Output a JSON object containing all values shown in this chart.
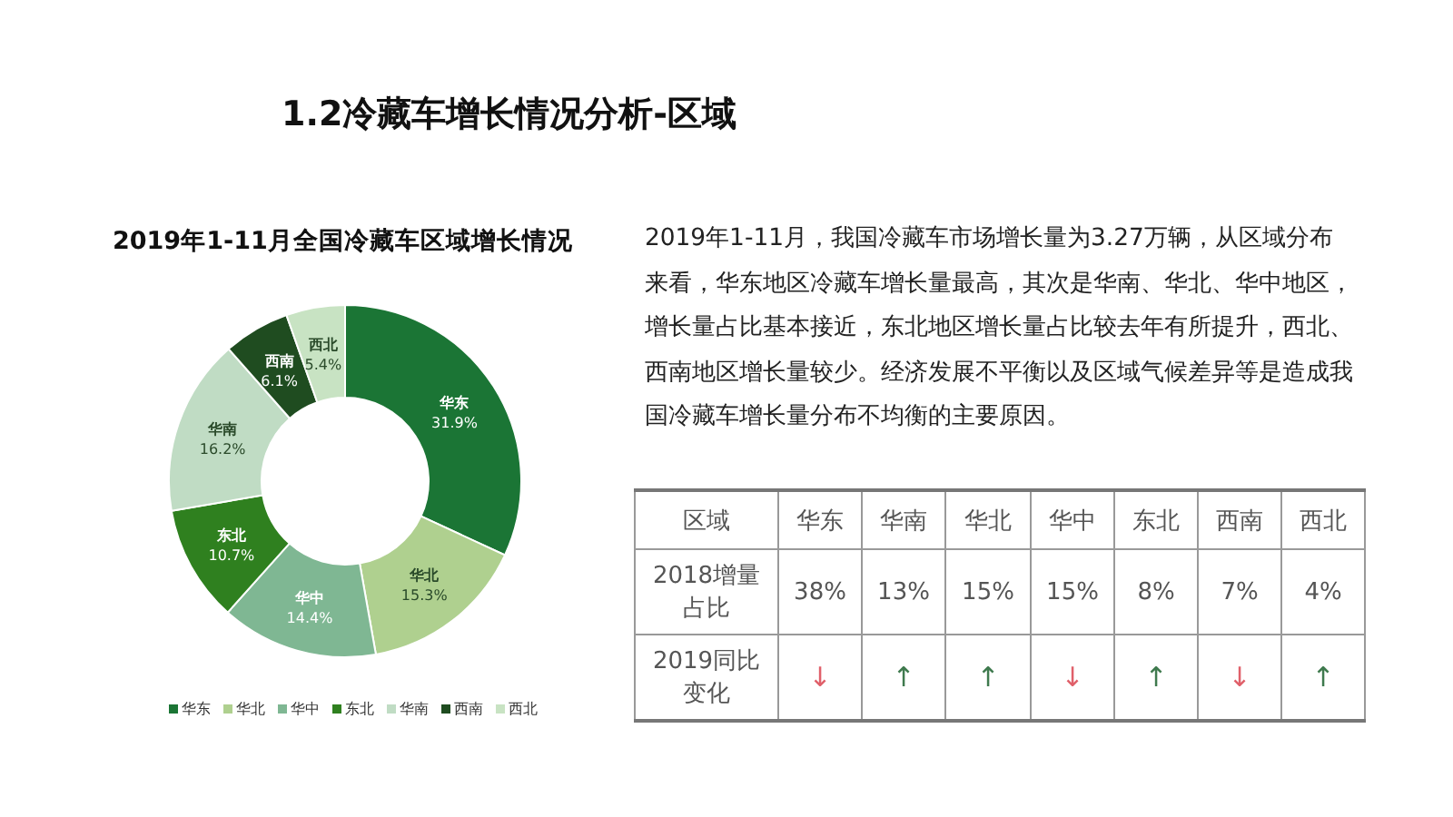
{
  "chart_data": [
    {
      "type": "donut",
      "title": "2019年1-11月全国冷藏车区域增长情况",
      "categories": [
        "华东",
        "华北",
        "华中",
        "东北",
        "华南",
        "西南",
        "西北"
      ],
      "values": [
        31.9,
        15.3,
        14.4,
        10.7,
        16.2,
        6.1,
        5.4
      ],
      "colors": [
        "#1b7535",
        "#afd08f",
        "#7fb793",
        "#2f801f",
        "#c0dcc4",
        "#1f4c20",
        "#c8e3c3"
      ],
      "value_labels": [
        "31.9%",
        "15.3%",
        "14.4%",
        "10.7%",
        "16.2%",
        "6.1%",
        "5.4%"
      ],
      "legend": "bottom"
    },
    {
      "type": "other",
      "title": "1.2冷藏车增长情况分析-区域",
      "categories": [
        "华东",
        "华南",
        "华北",
        "华中",
        "东北",
        "西南",
        "西北"
      ],
      "values": [
        38,
        13,
        15,
        15,
        8,
        7,
        4
      ],
      "value_labels": [
        "38%",
        "13%",
        "15%",
        "15%",
        "8%",
        "7%",
        "4%"
      ],
      "colors": [
        "#e0606a",
        "#3f7a4e",
        "#3f7a4e",
        "#e0606a",
        "#3f7a4e",
        "#e0606a",
        "#3f7a4e"
      ],
      "annotations": [
        "2019年1-11月，我国冷藏车市场增长量为3.27万辆，从区域分布来看，华东地区冷藏车增长量最高，其次是华南、华北、华中地区，增长量占比基本接近，东北地区增长量占比较去年有所提升，西北、西南地区增长量较少。经济发展不平衡以及区域气候差异等是造成我国冷藏车增长量分布不均衡的主要原因。",
        "区域",
        "2018增量占比",
        "2019同比变化",
        "↓",
        "↑",
        "↑",
        "↓",
        "↑",
        "↓",
        "↑"
      ]
    }
  ]
}
